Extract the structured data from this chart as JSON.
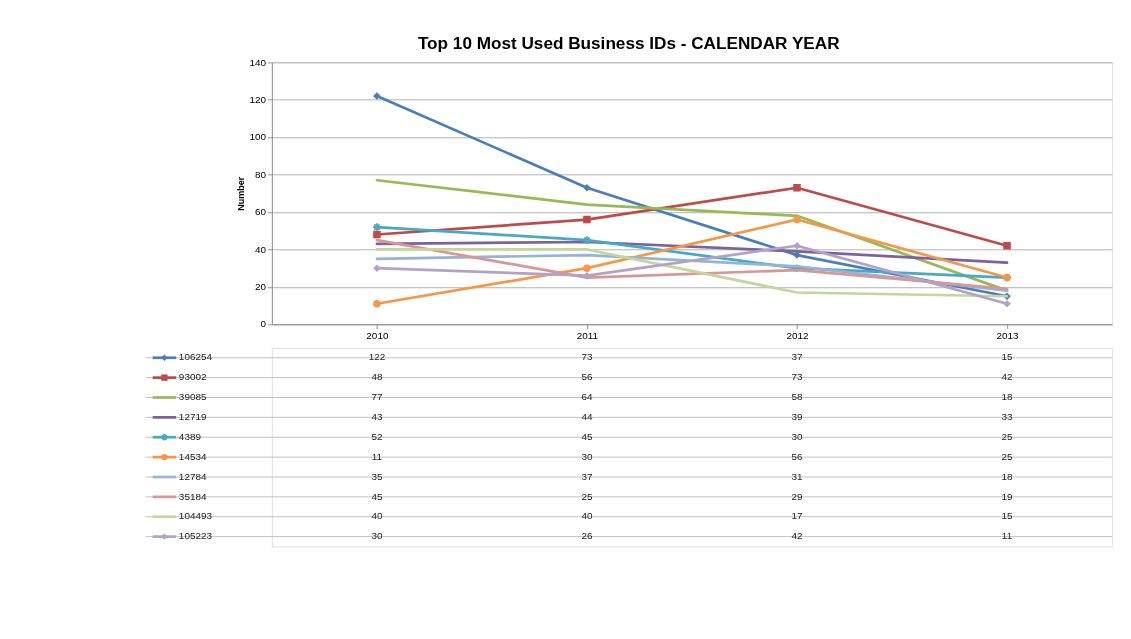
{
  "chart_data": {
    "type": "line",
    "title": "Top 10 Most Used Business IDs - CALENDAR YEAR",
    "ylabel": "Number",
    "categories": [
      "2010",
      "2011",
      "2012",
      "2013"
    ],
    "series": [
      {
        "name": "106254",
        "color": "#4a7ebb",
        "marker": "diamond",
        "values": [
          122,
          73,
          37,
          15
        ]
      },
      {
        "name": "93002",
        "color": "#be4b48",
        "marker": "square",
        "values": [
          48,
          56,
          73,
          42
        ]
      },
      {
        "name": "39085",
        "color": "#98b954",
        "marker": "none",
        "values": [
          77,
          64,
          58,
          18
        ]
      },
      {
        "name": "12719",
        "color": "#7d60a0",
        "marker": "none",
        "values": [
          43,
          44,
          39,
          33
        ]
      },
      {
        "name": "4389",
        "color": "#46aac5",
        "marker": "cross",
        "values": [
          52,
          45,
          30,
          25
        ]
      },
      {
        "name": "14534",
        "color": "#f79646",
        "marker": "circle",
        "values": [
          11,
          30,
          56,
          25
        ]
      },
      {
        "name": "12784",
        "color": "#95b3d7",
        "marker": "none",
        "values": [
          35,
          37,
          31,
          18
        ]
      },
      {
        "name": "35184",
        "color": "#d99694",
        "marker": "none",
        "values": [
          45,
          25,
          29,
          19
        ]
      },
      {
        "name": "104493",
        "color": "#c3d69b",
        "marker": "none",
        "values": [
          40,
          40,
          17,
          15
        ]
      },
      {
        "name": "105223",
        "color": "#b3a2c7",
        "marker": "diamond",
        "values": [
          30,
          26,
          42,
          11
        ]
      }
    ],
    "ylim": [
      0,
      140
    ],
    "yticks": [
      0,
      20,
      40,
      60,
      80,
      100,
      120,
      140
    ],
    "grid": "y",
    "legend": "bottom",
    "data_labels": true
  }
}
